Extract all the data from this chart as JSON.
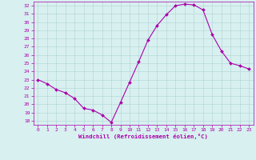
{
  "x": [
    0,
    1,
    2,
    3,
    4,
    5,
    6,
    7,
    8,
    9,
    10,
    11,
    12,
    13,
    14,
    15,
    16,
    17,
    18,
    19,
    20,
    21,
    22,
    23
  ],
  "y": [
    23.0,
    22.5,
    21.8,
    21.4,
    20.7,
    19.5,
    19.3,
    18.7,
    17.8,
    20.2,
    22.7,
    25.2,
    27.8,
    29.6,
    30.9,
    32.0,
    32.2,
    32.1,
    31.5,
    28.5,
    26.5,
    25.0,
    24.7,
    24.3
  ],
  "line_color": "#aa00aa",
  "marker": "D",
  "markersize": 2.0,
  "linewidth": 0.8,
  "bg_color": "#d8f0f0",
  "grid_color": "#b8d8d8",
  "xlabel": "Windchill (Refroidissement éolien,°C)",
  "xlabel_color": "#aa00aa",
  "tick_color": "#aa00aa",
  "axis_color": "#aa00aa",
  "ylim": [
    17.5,
    32.5
  ],
  "xlim": [
    -0.5,
    23.5
  ],
  "yticks": [
    18,
    19,
    20,
    21,
    22,
    23,
    24,
    25,
    26,
    27,
    28,
    29,
    30,
    31,
    32
  ],
  "xticks": [
    0,
    1,
    2,
    3,
    4,
    5,
    6,
    7,
    8,
    9,
    10,
    11,
    12,
    13,
    14,
    15,
    16,
    17,
    18,
    19,
    20,
    21,
    22,
    23
  ]
}
